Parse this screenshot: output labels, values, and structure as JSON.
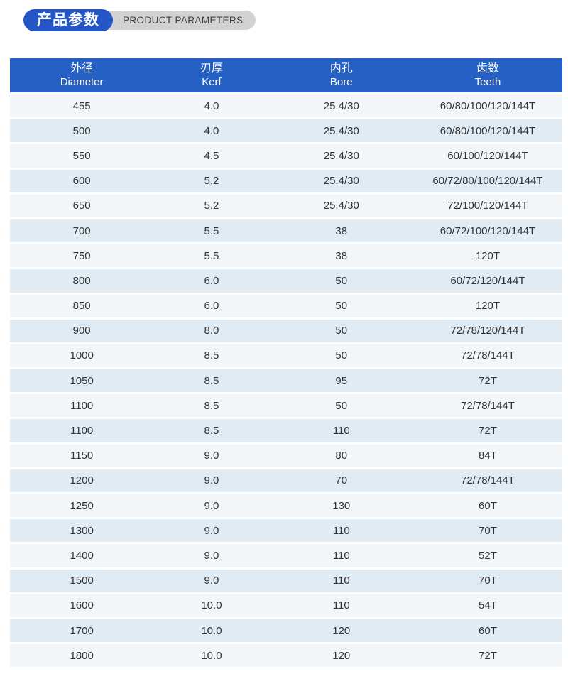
{
  "title": {
    "zh": "产品参数",
    "en": "PRODUCT PARAMETERS"
  },
  "colors": {
    "pill_blue": "#2456c7",
    "pill_gray": "#d2d2d2",
    "header_blue": "#2560c4",
    "row_light": "#f2f6f9",
    "row_blue": "#e0ebf4"
  },
  "table": {
    "columns": [
      {
        "zh": "外径",
        "en": "Diameter"
      },
      {
        "zh": "刃厚",
        "en": "Kerf"
      },
      {
        "zh": "内孔",
        "en": "Bore"
      },
      {
        "zh": "齿数",
        "en": "Teeth"
      }
    ],
    "rows": [
      [
        "455",
        "4.0",
        "25.4/30",
        "60/80/100/120/144T"
      ],
      [
        "500",
        "4.0",
        "25.4/30",
        "60/80/100/120/144T"
      ],
      [
        "550",
        "4.5",
        "25.4/30",
        "60/100/120/144T"
      ],
      [
        "600",
        "5.2",
        "25.4/30",
        "60/72/80/100/120/144T"
      ],
      [
        "650",
        "5.2",
        "25.4/30",
        "72/100/120/144T"
      ],
      [
        "700",
        "5.5",
        "38",
        "60/72/100/120/144T"
      ],
      [
        "750",
        "5.5",
        "38",
        "120T"
      ],
      [
        "800",
        "6.0",
        "50",
        "60/72/120/144T"
      ],
      [
        "850",
        "6.0",
        "50",
        "120T"
      ],
      [
        "900",
        "8.0",
        "50",
        "72/78/120/144T"
      ],
      [
        "1000",
        "8.5",
        "50",
        "72/78/144T"
      ],
      [
        "1050",
        "8.5",
        "95",
        "72T"
      ],
      [
        "1100",
        "8.5",
        "50",
        "72/78/144T"
      ],
      [
        "1100",
        "8.5",
        "110",
        "72T"
      ],
      [
        "1150",
        "9.0",
        "80",
        "84T"
      ],
      [
        "1200",
        "9.0",
        "70",
        "72/78/144T"
      ],
      [
        "1250",
        "9.0",
        "130",
        "60T"
      ],
      [
        "1300",
        "9.0",
        "110",
        "70T"
      ],
      [
        "1400",
        "9.0",
        "110",
        "52T"
      ],
      [
        "1500",
        "9.0",
        "110",
        "70T"
      ],
      [
        "1600",
        "10.0",
        "110",
        "54T"
      ],
      [
        "1700",
        "10.0",
        "120",
        "60T"
      ],
      [
        "1800",
        "10.0",
        "120",
        "72T"
      ]
    ]
  }
}
